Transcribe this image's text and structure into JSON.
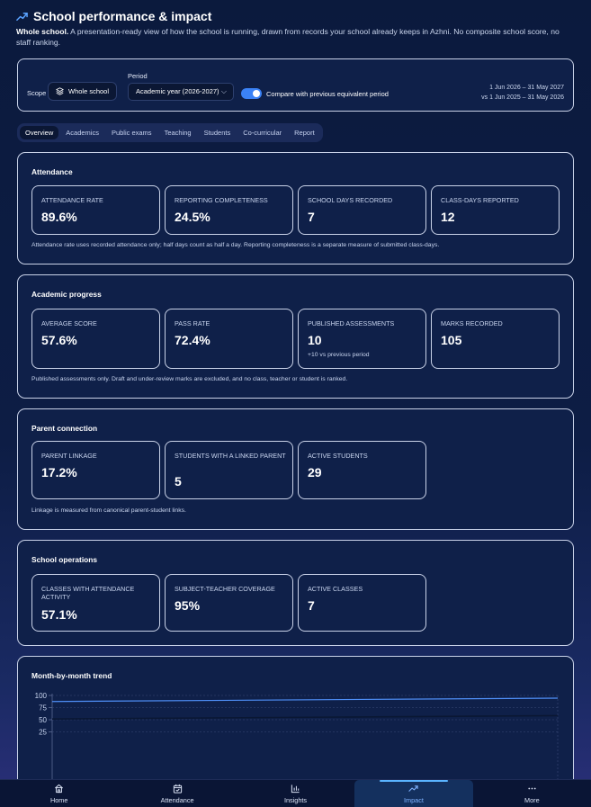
{
  "header": {
    "title": "School performance & impact",
    "subtitle_bold": "Whole school.",
    "subtitle": "A presentation-ready view of how the school is running, drawn from records your school already keeps in Azhni. No composite school score, no staff ranking."
  },
  "filters": {
    "scope_label": "Scope",
    "scope_value": "Whole school",
    "period_label": "Period",
    "period_value": "Academic year (2026-2027)",
    "compare_label": "Compare with previous equivalent period",
    "compare_on": true,
    "date_range": "1 Jun 2026 – 31 May 2027",
    "compare_range": "vs 1 Jun 2025 – 31 May 2026"
  },
  "tabs": [
    {
      "label": "Overview",
      "active": true
    },
    {
      "label": "Academics",
      "active": false
    },
    {
      "label": "Public exams",
      "active": false
    },
    {
      "label": "Teaching",
      "active": false
    },
    {
      "label": "Students",
      "active": false
    },
    {
      "label": "Co-curricular",
      "active": false
    },
    {
      "label": "Report",
      "active": false
    }
  ],
  "attendance": {
    "title": "Attendance",
    "cards": [
      {
        "label": "ATTENDANCE RATE",
        "value": "89.6%"
      },
      {
        "label": "REPORTING COMPLETENESS",
        "value": "24.5%"
      },
      {
        "label": "SCHOOL DAYS RECORDED",
        "value": "7"
      },
      {
        "label": "CLASS-DAYS REPORTED",
        "value": "12"
      }
    ],
    "note": "Attendance rate uses recorded attendance only; half days count as half a day. Reporting completeness is a separate measure of submitted class-days."
  },
  "academic": {
    "title": "Academic progress",
    "cards": [
      {
        "label": "AVERAGE SCORE",
        "value": "57.6%"
      },
      {
        "label": "PASS RATE",
        "value": "72.4%"
      },
      {
        "label": "PUBLISHED ASSESSMENTS",
        "value": "10",
        "sub": "+10 vs previous period"
      },
      {
        "label": "MARKS RECORDED",
        "value": "105"
      }
    ],
    "note": "Published assessments only. Draft and under-review marks are excluded, and no class, teacher or student is ranked."
  },
  "parent": {
    "title": "Parent connection",
    "cards": [
      {
        "label": "PARENT LINKAGE",
        "value": "17.2%"
      },
      {
        "label": "STUDENTS WITH A LINKED PARENT",
        "value": "5"
      },
      {
        "label": "ACTIVE STUDENTS",
        "value": "29"
      }
    ],
    "note": "Linkage is measured from canonical parent-student links."
  },
  "operations": {
    "title": "School operations",
    "cards": [
      {
        "label": "CLASSES WITH ATTENDANCE ACTIVITY",
        "value": "57.1%"
      },
      {
        "label": "SUBJECT-TEACHER COVERAGE",
        "value": "95%"
      },
      {
        "label": "ACTIVE CLASSES",
        "value": "7"
      }
    ]
  },
  "trend": {
    "title": "Month-by-month trend"
  },
  "chart_data": {
    "type": "line",
    "title": "Month-by-month trend",
    "xlabel": "",
    "ylabel": "",
    "ylim": [
      0,
      100
    ],
    "yticks": [
      "100",
      "75",
      "50",
      "25"
    ],
    "grid": true,
    "x": [
      0,
      1
    ],
    "series": [
      {
        "values": [
          87.5,
          94.5
        ],
        "color": "#4f8ff7"
      },
      {
        "values": [
          51.5,
          58.5
        ],
        "color": "#0a1733"
      }
    ]
  },
  "nav": [
    {
      "label": "Home",
      "icon": "home-icon",
      "active": false
    },
    {
      "label": "Attendance",
      "icon": "calendar-check-icon",
      "active": false
    },
    {
      "label": "Insights",
      "icon": "bar-chart-icon",
      "active": false
    },
    {
      "label": "Impact",
      "icon": "trend-icon",
      "active": true
    },
    {
      "label": "More",
      "icon": "more-dots-icon",
      "active": false
    }
  ]
}
